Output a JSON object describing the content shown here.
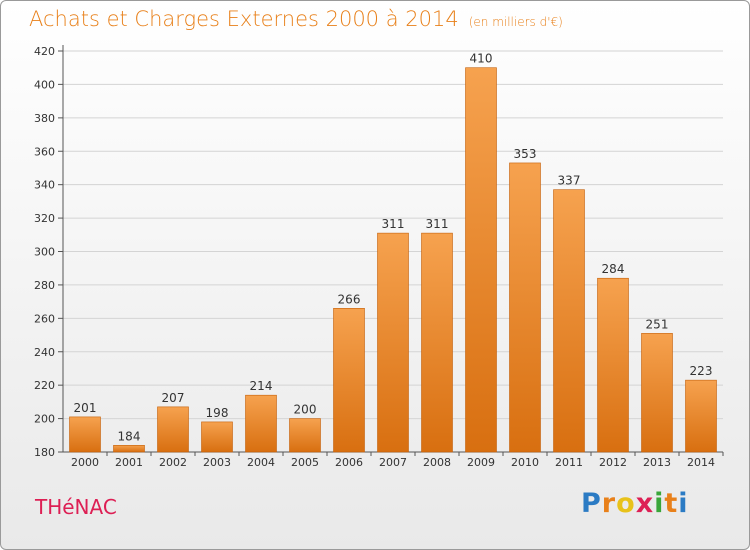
{
  "header": {
    "title": "Achats et Charges Externes 2000 à 2014",
    "unit": "(en milliers d'€)"
  },
  "footer": {
    "commune": "THéNAC",
    "logo_letters": [
      "P",
      "r",
      "o",
      "x",
      "i",
      "t",
      "i"
    ],
    "logo_colors": [
      "#2b7bc4",
      "#e8801a",
      "#e8c21a",
      "#dd1f54",
      "#3aa63a",
      "#e8801a",
      "#2b7bc4"
    ]
  },
  "colors": {
    "bar_top": "#f6a24f",
    "bar_bottom": "#d86f10",
    "bar_edge": "#c4600a",
    "title": "#e8801a",
    "commune": "#dd1f54"
  },
  "chart_data": {
    "type": "bar",
    "title": "Achats et Charges Externes 2000 à 2014",
    "subtitle": "(en milliers d'€)",
    "categories": [
      "2000",
      "2001",
      "2002",
      "2003",
      "2004",
      "2005",
      "2006",
      "2007",
      "2008",
      "2009",
      "2010",
      "2011",
      "2012",
      "2013",
      "2014"
    ],
    "values": [
      201,
      184,
      207,
      198,
      214,
      200,
      266,
      311,
      311,
      410,
      353,
      337,
      284,
      251,
      223
    ],
    "ylim": [
      180,
      420
    ],
    "yticks": [
      180,
      200,
      220,
      240,
      260,
      280,
      300,
      320,
      340,
      360,
      380,
      400,
      420
    ],
    "grid": true,
    "legend": "none"
  }
}
